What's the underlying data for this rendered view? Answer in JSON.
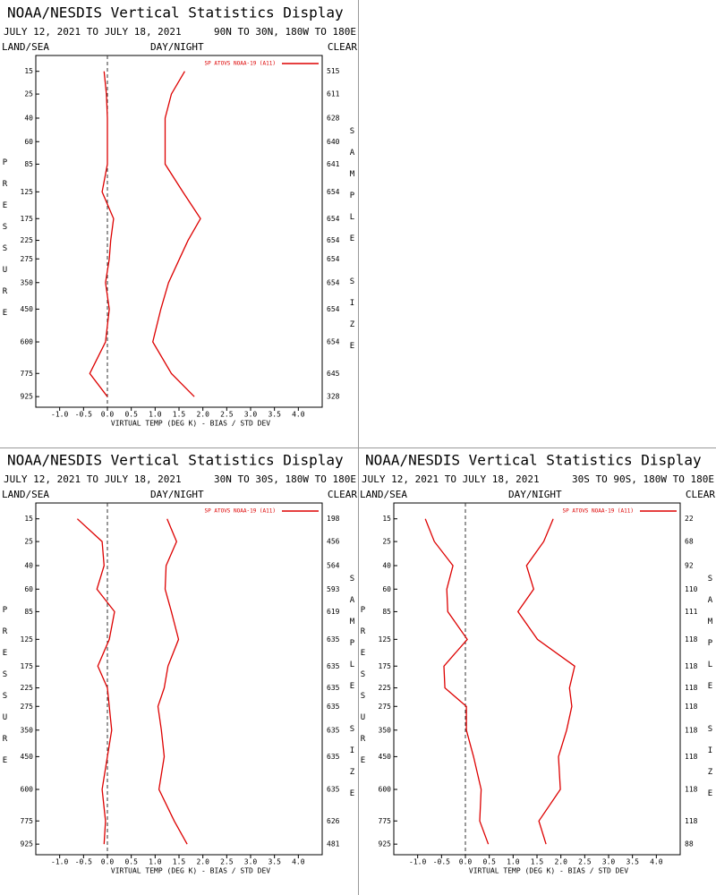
{
  "chart_data": [
    {
      "type": "line",
      "title": "NOAA/NESDIS Vertical Statistics Display",
      "subtitle": "JULY 12, 2021 TO JULY 18, 2021",
      "region": "90N TO 30N, 180W TO 180E",
      "surface": "LAND/SEA",
      "time": "DAY/NIGHT",
      "sky": "CLEAR",
      "xlabel": "VIRTUAL TEMP (DEG K) - BIAS / STD DEV",
      "ylabel": "PRESSURE",
      "y2label": "SAMPLE SIZE",
      "y": [
        15,
        25,
        40,
        60,
        85,
        125,
        175,
        225,
        275,
        350,
        450,
        600,
        775,
        925
      ],
      "sample_size": [
        515,
        611,
        628,
        640,
        641,
        654,
        654,
        654,
        654,
        654,
        654,
        654,
        645,
        328
      ],
      "series": [
        {
          "name": "SP ATOVS NOAA-19 (A11)",
          "color": "#dd0000",
          "values": [
            -0.07,
            -0.02,
            0,
            0,
            0,
            -0.11,
            0.13,
            0.07,
            0.04,
            -0.04,
            0.04,
            -0.04,
            -0.37,
            0
          ],
          "std_dev": [
            1.62,
            1.34,
            1.21,
            1.21,
            1.21,
            1.58,
            1.95,
            1.69,
            1.51,
            1.28,
            1.12,
            0.95,
            1.34,
            1.82
          ]
        }
      ],
      "xlim": [
        -1.5,
        4.5
      ],
      "xticks": [
        {
          "value": -1,
          "label": "-1.0"
        },
        -0.5,
        {
          "value": 0,
          "label": "0.0"
        },
        0.5,
        {
          "value": 1,
          "label": "1.0"
        },
        1.5,
        {
          "value": 2,
          "label": "2.0"
        },
        2.5,
        {
          "value": 3,
          "label": "3.0"
        },
        3.5,
        {
          "value": 4,
          "label": "4.0"
        }
      ],
      "ylim": [
        10,
        1000
      ],
      "yticks": [
        15,
        25,
        40,
        60,
        85,
        125,
        175,
        225,
        275,
        350,
        450,
        600,
        775,
        925
      ],
      "zero_line": true
    },
    {
      "type": "line",
      "title": "NOAA/NESDIS Vertical Statistics Display",
      "subtitle": "JULY 12, 2021 TO JULY 18, 2021",
      "region": "30N TO 30S, 180W TO 180E",
      "surface": "LAND/SEA",
      "time": "DAY/NIGHT",
      "sky": "CLEAR",
      "xlabel": "VIRTUAL TEMP (DEG K) - BIAS / STD DEV",
      "ylabel": "PRESSURE",
      "y2label": "SAMPLE SIZE",
      "y": [
        15,
        25,
        40,
        60,
        85,
        125,
        175,
        225,
        275,
        350,
        450,
        600,
        775,
        925
      ],
      "sample_size": [
        198,
        456,
        564,
        593,
        619,
        635,
        635,
        635,
        635,
        635,
        635,
        635,
        626,
        481
      ],
      "series": [
        {
          "name": "SP ATOVS NOAA-19 (A11)",
          "color": "#dd0000",
          "values": [
            -0.63,
            -0.11,
            -0.07,
            -0.22,
            0.15,
            0.04,
            -0.2,
            0,
            0.04,
            0.09,
            0,
            -0.11,
            -0.04,
            -0.07
          ],
          "std_dev": [
            1.25,
            1.45,
            1.23,
            1.21,
            1.34,
            1.49,
            1.27,
            1.19,
            1.06,
            1.13,
            1.19,
            1.08,
            1.4,
            1.67
          ]
        }
      ],
      "xlim": [
        -1.5,
        4.5
      ],
      "xticks": [
        {
          "value": -1,
          "label": "-1.0"
        },
        -0.5,
        {
          "value": 0,
          "label": "0.0"
        },
        0.5,
        {
          "value": 1,
          "label": "1.0"
        },
        1.5,
        {
          "value": 2,
          "label": "2.0"
        },
        2.5,
        {
          "value": 3,
          "label": "3.0"
        },
        3.5,
        {
          "value": 4,
          "label": "4.0"
        }
      ],
      "ylim": [
        10,
        1000
      ],
      "yticks": [
        15,
        25,
        40,
        60,
        85,
        125,
        175,
        225,
        275,
        350,
        450,
        600,
        775,
        925
      ],
      "zero_line": true
    },
    {
      "type": "line",
      "title": "NOAA/NESDIS Vertical Statistics Display",
      "subtitle": "JULY 12, 2021 TO JULY 18, 2021",
      "region": "30S TO 90S, 180W TO 180E",
      "surface": "LAND/SEA",
      "time": "DAY/NIGHT",
      "sky": "CLEAR",
      "xlabel": "VIRTUAL TEMP (DEG K) - BIAS / STD DEV",
      "ylabel": "PRESSURE",
      "y2label": "SAMPLE SIZE",
      "y": [
        15,
        25,
        40,
        60,
        85,
        125,
        175,
        225,
        275,
        350,
        450,
        600,
        775,
        925
      ],
      "sample_size": [
        22,
        68,
        92,
        110,
        111,
        118,
        118,
        118,
        118,
        118,
        118,
        118,
        118,
        88
      ],
      "series": [
        {
          "name": "SP ATOVS NOAA-19 (A11)",
          "color": "#dd0000",
          "values": [
            -0.84,
            -0.65,
            -0.26,
            -0.39,
            -0.37,
            0.04,
            -0.45,
            -0.43,
            0.02,
            0.02,
            0.17,
            0.33,
            0.3,
            0.48
          ],
          "std_dev": [
            1.84,
            1.64,
            1.28,
            1.43,
            1.1,
            1.51,
            2.29,
            2.18,
            2.23,
            2.12,
            1.95,
            1.99,
            1.54,
            1.69
          ]
        }
      ],
      "xlim": [
        -1.5,
        4.5
      ],
      "xticks": [
        {
          "value": -1,
          "label": "-1.0"
        },
        -0.5,
        {
          "value": 0,
          "label": "0.0"
        },
        0.5,
        {
          "value": 1,
          "label": "1.0"
        },
        1.5,
        {
          "value": 2,
          "label": "2.0"
        },
        2.5,
        {
          "value": 3,
          "label": "3.0"
        },
        3.5,
        {
          "value": 4,
          "label": "4.0"
        }
      ],
      "ylim": [
        10,
        1000
      ],
      "yticks": [
        15,
        25,
        40,
        60,
        85,
        125,
        175,
        225,
        275,
        350,
        450,
        600,
        775,
        925
      ],
      "zero_line": true
    }
  ]
}
